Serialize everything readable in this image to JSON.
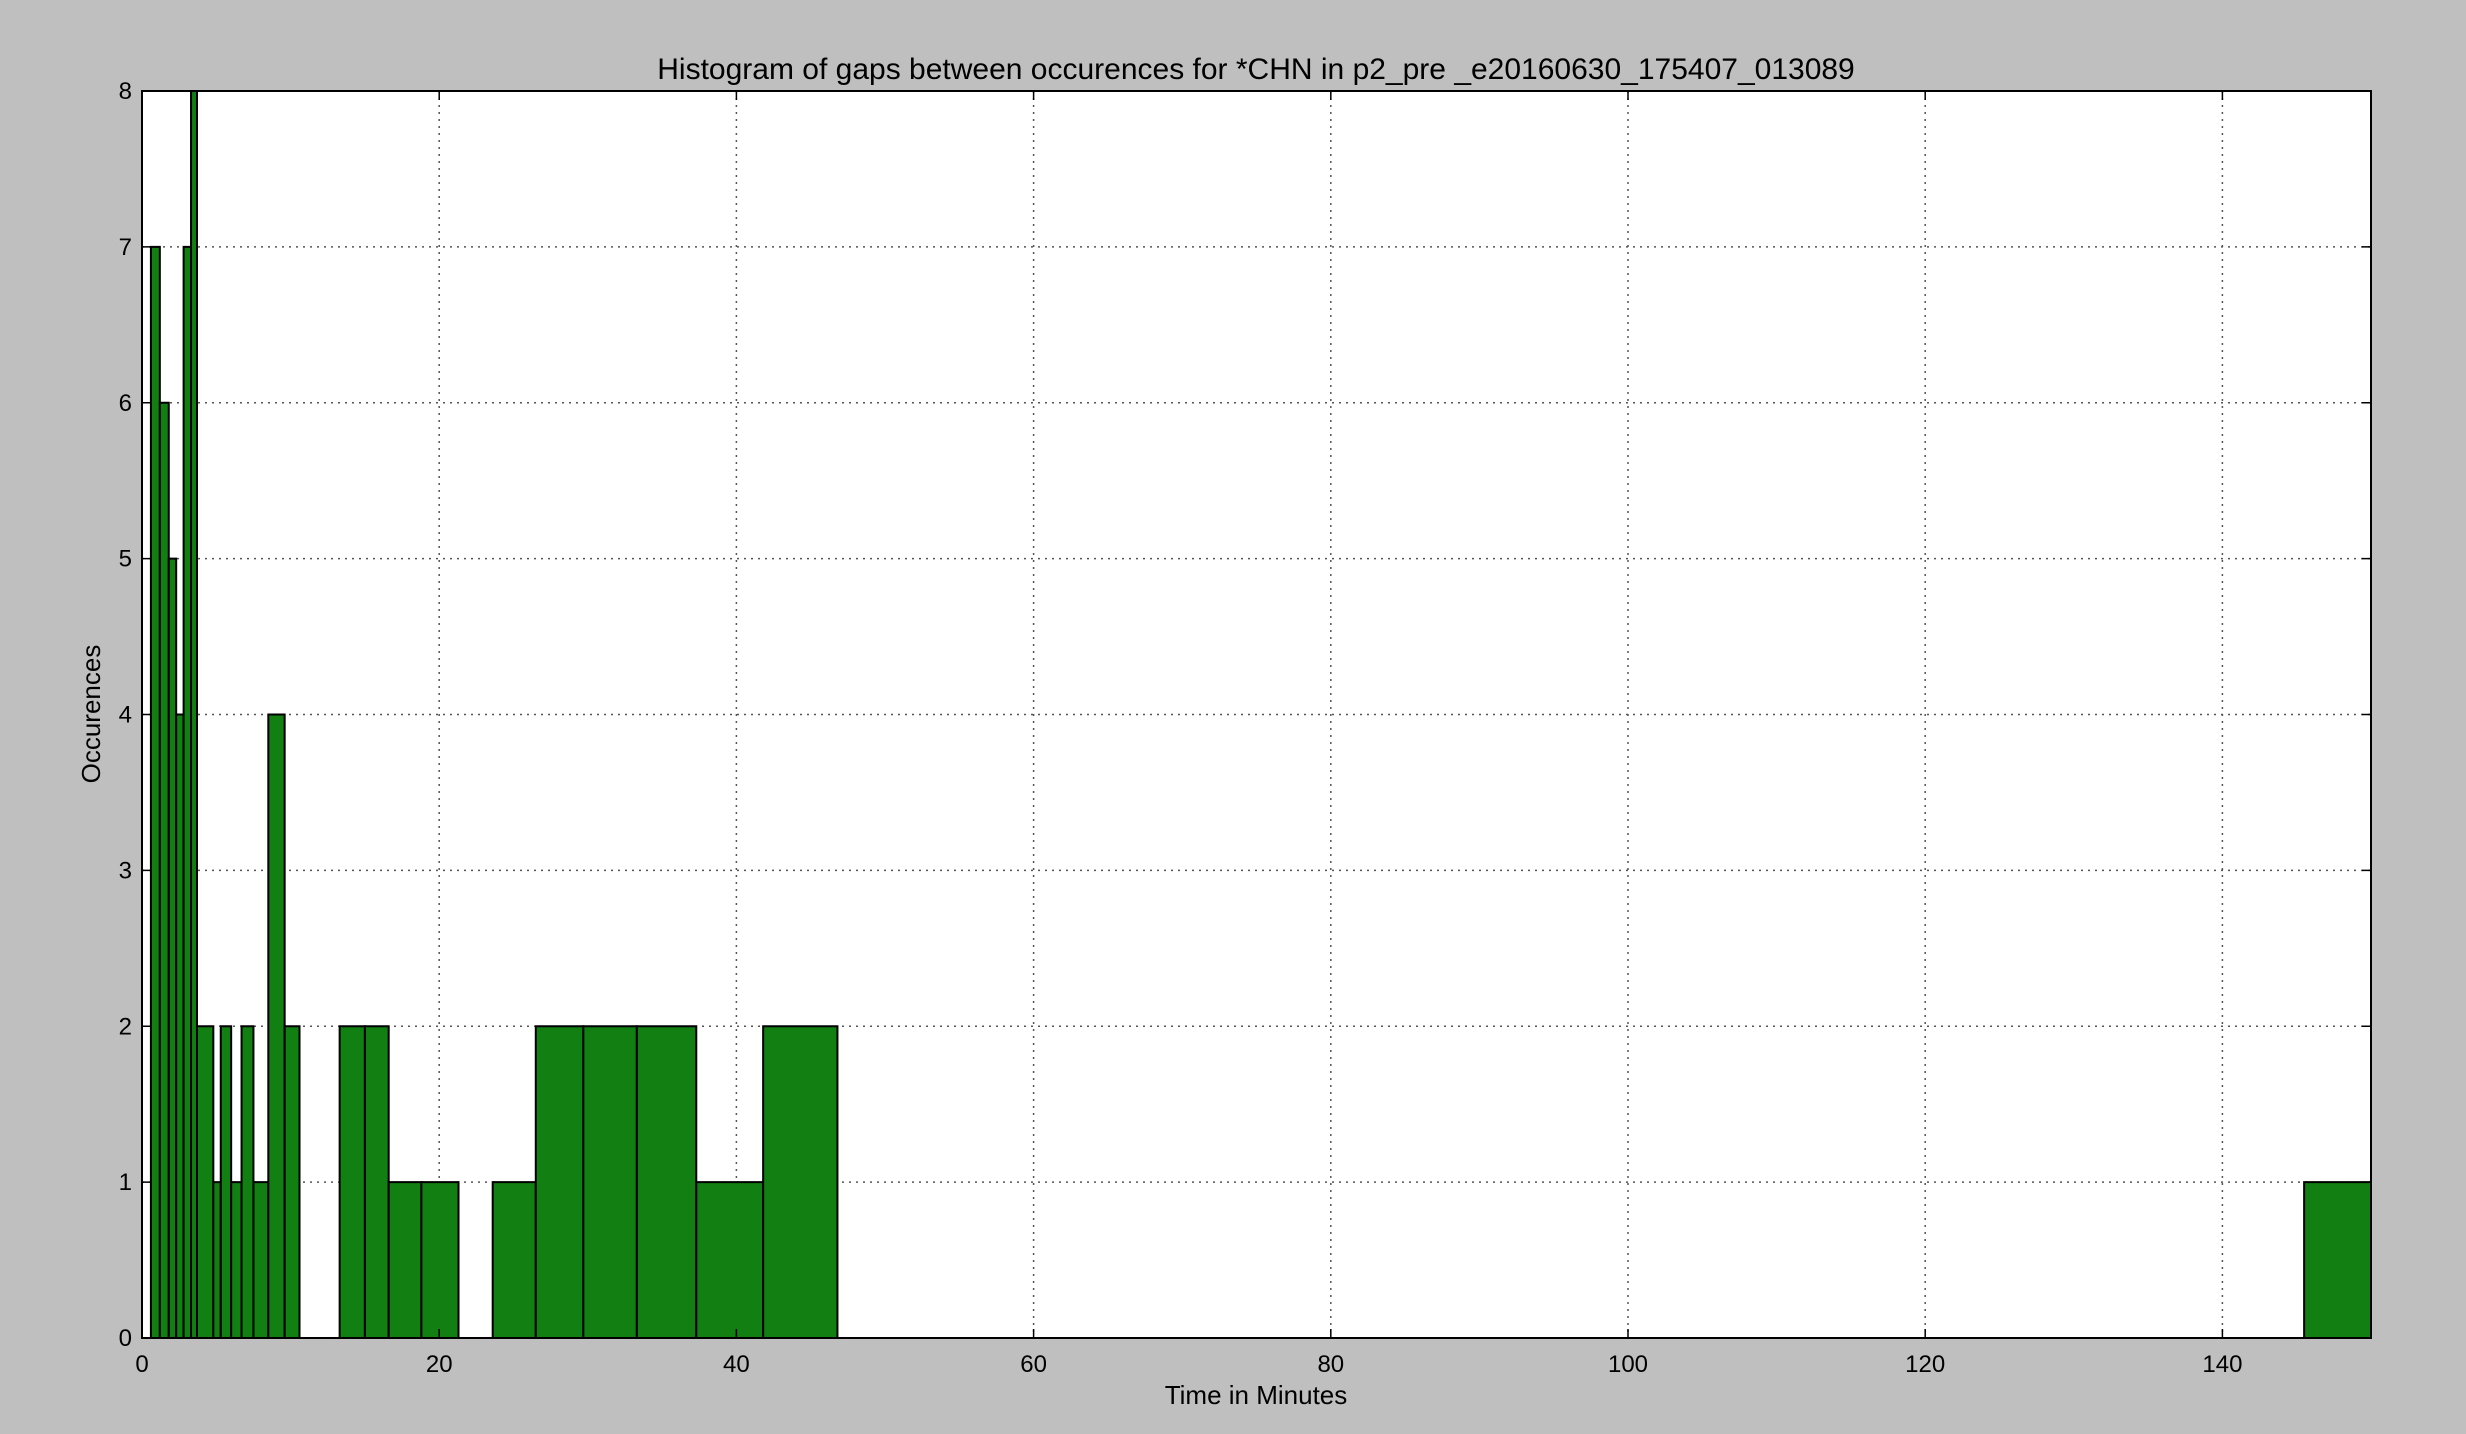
{
  "figure": {
    "background": "#bfbfbf",
    "plot_background": "#ffffff",
    "bar_color": "#117f11",
    "edge_color": "#000000",
    "grid_color": "#555555"
  },
  "chart_data": {
    "type": "bar",
    "title": "Histogram of gaps between occurences for *CHN in p2_pre _e20160630_175407_013089",
    "xlabel": "Time in Minutes",
    "ylabel": "Occurences",
    "xlim": [
      0,
      150
    ],
    "ylim": [
      0,
      8
    ],
    "xticks": [
      0,
      20,
      40,
      60,
      80,
      100,
      120,
      140
    ],
    "yticks": [
      0,
      1,
      2,
      3,
      4,
      5,
      6,
      7,
      8
    ],
    "grid": true,
    "legend": "none",
    "bins": [
      {
        "x0": 0.6,
        "x1": 1.2,
        "value": 7
      },
      {
        "x0": 1.2,
        "x1": 1.8,
        "value": 6
      },
      {
        "x0": 1.8,
        "x1": 2.3,
        "value": 5
      },
      {
        "x0": 2.3,
        "x1": 2.8,
        "value": 4
      },
      {
        "x0": 2.8,
        "x1": 3.3,
        "value": 7
      },
      {
        "x0": 3.3,
        "x1": 3.7,
        "value": 8
      },
      {
        "x0": 3.7,
        "x1": 4.8,
        "value": 2
      },
      {
        "x0": 4.8,
        "x1": 5.3,
        "value": 1
      },
      {
        "x0": 5.3,
        "x1": 6.0,
        "value": 2
      },
      {
        "x0": 6.0,
        "x1": 6.7,
        "value": 1
      },
      {
        "x0": 6.7,
        "x1": 7.5,
        "value": 2
      },
      {
        "x0": 7.5,
        "x1": 8.5,
        "value": 1
      },
      {
        "x0": 8.5,
        "x1": 9.6,
        "value": 4
      },
      {
        "x0": 9.6,
        "x1": 10.6,
        "value": 2
      },
      {
        "x0": 13.3,
        "x1": 15.0,
        "value": 2
      },
      {
        "x0": 15.0,
        "x1": 16.6,
        "value": 2
      },
      {
        "x0": 16.6,
        "x1": 18.8,
        "value": 1
      },
      {
        "x0": 18.8,
        "x1": 21.3,
        "value": 1
      },
      {
        "x0": 23.6,
        "x1": 26.5,
        "value": 1
      },
      {
        "x0": 26.5,
        "x1": 29.7,
        "value": 2
      },
      {
        "x0": 29.7,
        "x1": 33.3,
        "value": 2
      },
      {
        "x0": 33.3,
        "x1": 37.3,
        "value": 2
      },
      {
        "x0": 37.3,
        "x1": 41.8,
        "value": 1
      },
      {
        "x0": 41.8,
        "x1": 46.8,
        "value": 2
      },
      {
        "x0": 145.5,
        "x1": 150.0,
        "value": 1
      }
    ]
  }
}
